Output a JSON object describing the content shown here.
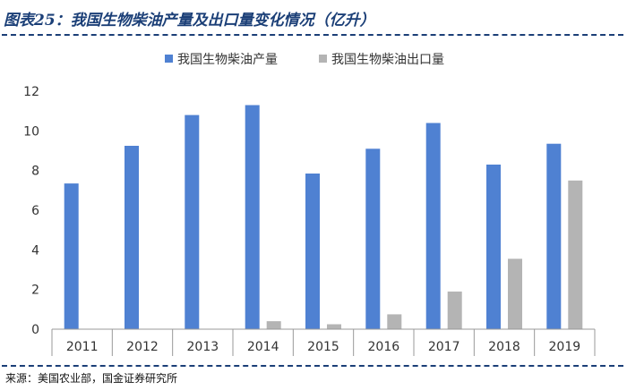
{
  "header": {
    "title": "图表25：我国生物柴油产量及出口量变化情况（亿升）"
  },
  "footer": {
    "source": "来源：美国农业部，国金证券研究所"
  },
  "colors": {
    "production": "#4f81d2",
    "export": "#b4b4b4",
    "axis": "#999999",
    "title": "#1b3f77"
  },
  "chart_data": {
    "type": "bar",
    "title": "",
    "xlabel": "",
    "ylabel": "",
    "categories": [
      "2011",
      "2012",
      "2013",
      "2014",
      "2015",
      "2016",
      "2017",
      "2018",
      "2019"
    ],
    "series": [
      {
        "name": "我国生物柴油产量",
        "values": [
          7.35,
          9.25,
          10.8,
          11.3,
          7.85,
          9.1,
          10.4,
          8.3,
          9.35
        ]
      },
      {
        "name": "我国生物柴油出口量",
        "values": [
          0,
          0,
          0,
          0.4,
          0.25,
          0.75,
          1.9,
          3.55,
          7.5
        ]
      }
    ],
    "ylim": [
      0,
      12
    ],
    "yticks": [
      0,
      2,
      4,
      6,
      8,
      10,
      12
    ],
    "grid": false,
    "legend": "top-center"
  }
}
